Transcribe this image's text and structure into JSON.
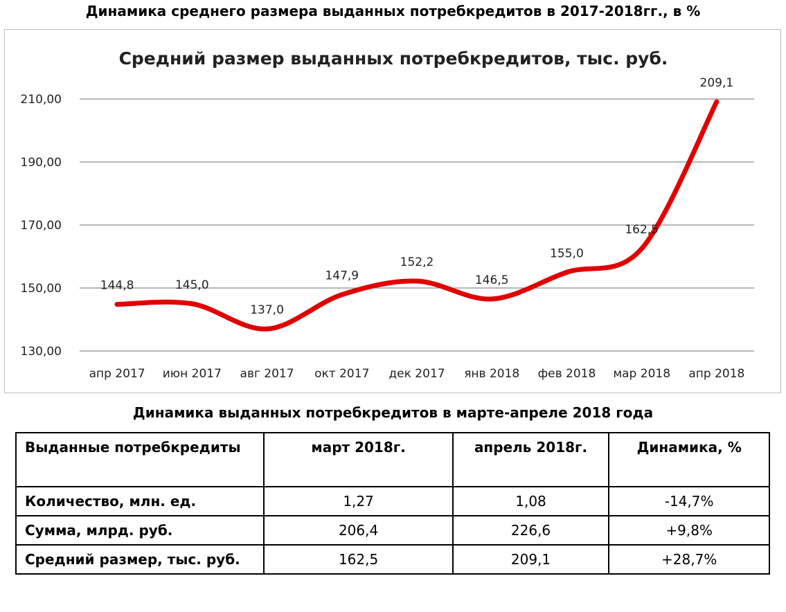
{
  "page_heading": "Динамика среднего размера выданных потребкредитов в 2017-2018гг., в %",
  "chart_data": {
    "type": "line",
    "title": "Средний размер выданных потребкредитов, тыс. руб.",
    "categories": [
      "апр 2017",
      "июн 2017",
      "авг 2017",
      "окт 2017",
      "дек 2017",
      "янв 2018",
      "фев 2018",
      "мар 2018",
      "апр 2018"
    ],
    "series": [
      {
        "values": [
          144.8,
          145.0,
          137.0,
          147.9,
          152.2,
          146.5,
          155.0,
          162.5,
          209.1
        ],
        "labels": [
          "144,8",
          "145,0",
          "137,0",
          "147,9",
          "152,2",
          "146,5",
          "155,0",
          "162,5",
          "209,1"
        ]
      }
    ],
    "y_ticks": [
      130,
      150,
      170,
      190,
      210
    ],
    "y_tick_labels": [
      "130,00",
      "150,00",
      "170,00",
      "190,00",
      "210,00"
    ],
    "ylim": [
      130,
      210
    ],
    "grid": true,
    "line_color": "#e00000"
  },
  "table_heading": "Динамика выданных потребкредитов в марте-апреле 2018 года",
  "table": {
    "header": [
      "Выданные потребкредиты",
      "март 2018г.",
      "апрель 2018г.",
      "Динамика, %"
    ],
    "rows": [
      {
        "label": "Количество, млн. ед.",
        "values": [
          "1,27",
          "1,08",
          "-14,7%"
        ]
      },
      {
        "label": "Сумма, млрд. руб.",
        "values": [
          "206,4",
          "226,6",
          "+9,8%"
        ]
      },
      {
        "label": "Средний размер, тыс. руб.",
        "values": [
          "162,5",
          "209,1",
          "+28,7%"
        ]
      }
    ]
  }
}
